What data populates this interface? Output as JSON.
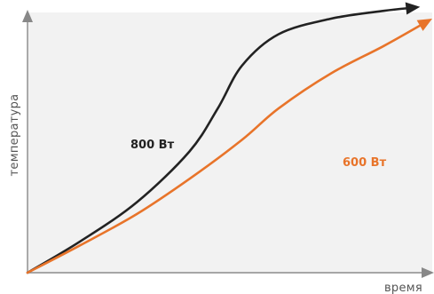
{
  "chart_data": {
    "type": "line",
    "xlabel": "время",
    "ylabel": "температура",
    "grid": false,
    "background": "#f2f2f2",
    "axis_color": "#888888",
    "series": [
      {
        "name": "800 Вт",
        "color": "#222222",
        "x": [
          0,
          0.13,
          0.27,
          0.4,
          0.47,
          0.53,
          0.62,
          0.75,
          0.88,
          0.97
        ],
        "y": [
          0,
          0.08,
          0.18,
          0.31,
          0.42,
          0.53,
          0.61,
          0.65,
          0.67,
          0.68
        ]
      },
      {
        "name": "600 Вт",
        "color": "#e8742a",
        "x": [
          0,
          0.13,
          0.27,
          0.4,
          0.53,
          0.62,
          0.75,
          0.88,
          1.0
        ],
        "y": [
          0,
          0.07,
          0.15,
          0.24,
          0.34,
          0.42,
          0.51,
          0.58,
          0.65
        ]
      }
    ]
  }
}
